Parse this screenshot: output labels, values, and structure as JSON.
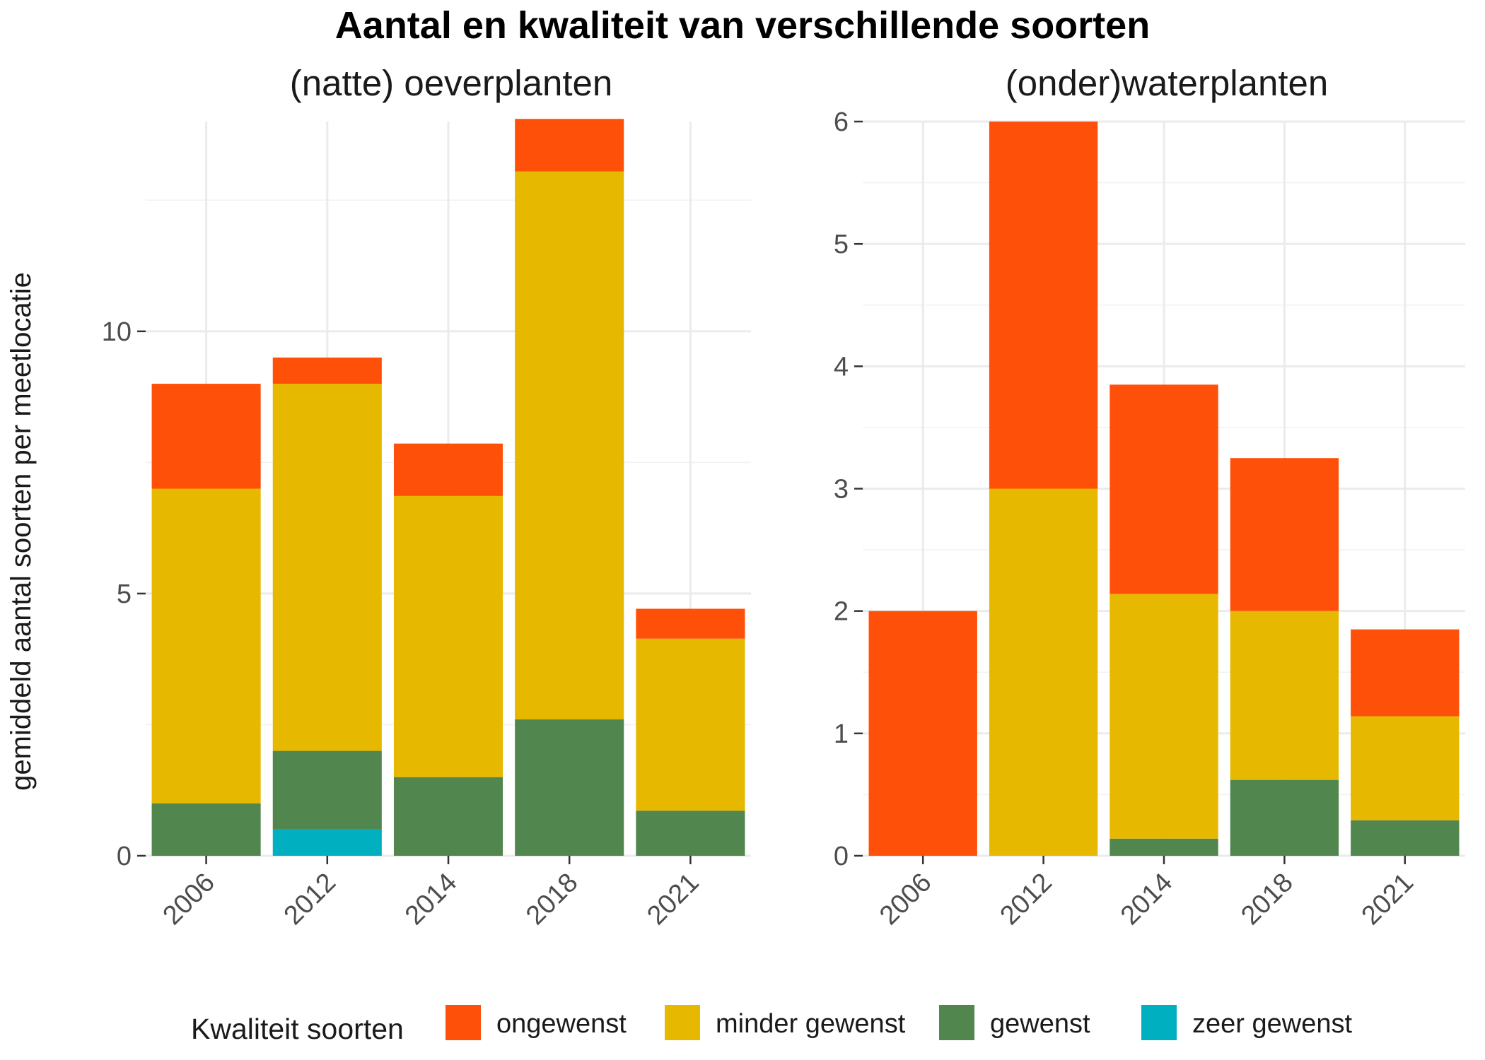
{
  "chart_data": {
    "type": "bar",
    "stacked": true,
    "title": "Aantal en kwaliteit van verschillende soorten",
    "ylabel": "gemiddeld aantal soorten per meetlocatie",
    "legend": {
      "title": "Kwaliteit soorten",
      "position": "bottom",
      "items": [
        {
          "label": "ongewenst",
          "color": "#FF5009"
        },
        {
          "label": "minder gewenst",
          "color": "#E6B800"
        },
        {
          "label": "gewenst",
          "color": "#51864F"
        },
        {
          "label": "zeer gewenst",
          "color": "#00AFC0"
        }
      ]
    },
    "panels": [
      {
        "title": "(natte) oeverplanten",
        "categories": [
          "2006",
          "2012",
          "2014",
          "2018",
          "2021"
        ],
        "ylim": [
          0,
          14
        ],
        "yticks": [
          0,
          5,
          10
        ],
        "series": [
          {
            "name": "zeer gewenst",
            "values": [
              0,
              0.5,
              0,
              0,
              0
            ]
          },
          {
            "name": "gewenst",
            "values": [
              1.0,
              1.5,
              1.5,
              2.6,
              0.86
            ]
          },
          {
            "name": "minder gewenst",
            "values": [
              6.0,
              7.0,
              5.36,
              10.45,
              3.28
            ]
          },
          {
            "name": "ongewenst",
            "values": [
              2.0,
              0.5,
              1.0,
              1.0,
              0.57
            ]
          }
        ]
      },
      {
        "title": "(onder)waterplanten",
        "categories": [
          "2006",
          "2012",
          "2014",
          "2018",
          "2021"
        ],
        "ylim": [
          0,
          6
        ],
        "yticks": [
          0,
          1,
          2,
          3,
          4,
          5,
          6
        ],
        "series": [
          {
            "name": "zeer gewenst",
            "values": [
              0,
              0,
              0,
              0,
              0
            ]
          },
          {
            "name": "gewenst",
            "values": [
              0,
              0,
              0.14,
              0.62,
              0.29
            ]
          },
          {
            "name": "minder gewenst",
            "values": [
              0,
              3.0,
              2.0,
              1.38,
              0.85
            ]
          },
          {
            "name": "ongewenst",
            "values": [
              2.0,
              3.0,
              1.71,
              1.25,
              0.71
            ]
          }
        ]
      }
    ],
    "grid": true
  }
}
